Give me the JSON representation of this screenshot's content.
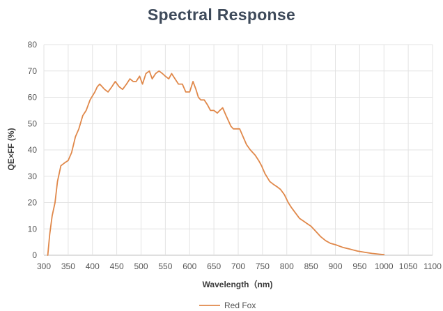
{
  "chart_data": {
    "type": "line",
    "title": "Spectral Response",
    "xlabel": "Wavelength（nm)",
    "ylabel": "QE×FF (%)",
    "xlim": [
      300,
      1100
    ],
    "ylim": [
      0,
      80
    ],
    "xticks": [
      300,
      350,
      400,
      450,
      500,
      550,
      600,
      650,
      700,
      750,
      800,
      850,
      900,
      950,
      1000,
      1050,
      1100
    ],
    "yticks": [
      0,
      10,
      20,
      30,
      40,
      50,
      60,
      70,
      80
    ],
    "grid": true,
    "legend_position": "bottom-center",
    "series": [
      {
        "name": "Red Fox",
        "color": "#e0884a",
        "points": [
          [
            308,
            0
          ],
          [
            312,
            8
          ],
          [
            317,
            15
          ],
          [
            323,
            20
          ],
          [
            328,
            28
          ],
          [
            335,
            34
          ],
          [
            342,
            35
          ],
          [
            350,
            36
          ],
          [
            357,
            39
          ],
          [
            365,
            45
          ],
          [
            372,
            48
          ],
          [
            380,
            53
          ],
          [
            387,
            55
          ],
          [
            395,
            59
          ],
          [
            405,
            62
          ],
          [
            410,
            64
          ],
          [
            415,
            65
          ],
          [
            420,
            64
          ],
          [
            425,
            63
          ],
          [
            432,
            62
          ],
          [
            440,
            64
          ],
          [
            447,
            66
          ],
          [
            455,
            64
          ],
          [
            462,
            63
          ],
          [
            470,
            65
          ],
          [
            477,
            67
          ],
          [
            484,
            66
          ],
          [
            490,
            66
          ],
          [
            497,
            68
          ],
          [
            503,
            65
          ],
          [
            510,
            69
          ],
          [
            517,
            70
          ],
          [
            523,
            67
          ],
          [
            530,
            69
          ],
          [
            537,
            70
          ],
          [
            544,
            69
          ],
          [
            550,
            68
          ],
          [
            557,
            67
          ],
          [
            563,
            69
          ],
          [
            570,
            67
          ],
          [
            577,
            65
          ],
          [
            585,
            65
          ],
          [
            592,
            62
          ],
          [
            600,
            62
          ],
          [
            607,
            66
          ],
          [
            613,
            63
          ],
          [
            618,
            60
          ],
          [
            623,
            59
          ],
          [
            630,
            59
          ],
          [
            637,
            57
          ],
          [
            643,
            55
          ],
          [
            650,
            55
          ],
          [
            657,
            54
          ],
          [
            662,
            55
          ],
          [
            668,
            56
          ],
          [
            675,
            53
          ],
          [
            680,
            51
          ],
          [
            685,
            49
          ],
          [
            690,
            48
          ],
          [
            697,
            48
          ],
          [
            703,
            48
          ],
          [
            710,
            45
          ],
          [
            717,
            42
          ],
          [
            725,
            40
          ],
          [
            735,
            38
          ],
          [
            742,
            36
          ],
          [
            748,
            34
          ],
          [
            755,
            31
          ],
          [
            765,
            28
          ],
          [
            772,
            27
          ],
          [
            780,
            26
          ],
          [
            787,
            25
          ],
          [
            795,
            23
          ],
          [
            803,
            20
          ],
          [
            810,
            18
          ],
          [
            818,
            16
          ],
          [
            826,
            14
          ],
          [
            834,
            13
          ],
          [
            842,
            12
          ],
          [
            850,
            11
          ],
          [
            860,
            9
          ],
          [
            870,
            7
          ],
          [
            880,
            5.5
          ],
          [
            890,
            4.5
          ],
          [
            900,
            4
          ],
          [
            915,
            3
          ],
          [
            930,
            2.3
          ],
          [
            945,
            1.6
          ],
          [
            960,
            1.1
          ],
          [
            975,
            0.7
          ],
          [
            990,
            0.4
          ],
          [
            1000,
            0.2
          ]
        ]
      }
    ]
  }
}
